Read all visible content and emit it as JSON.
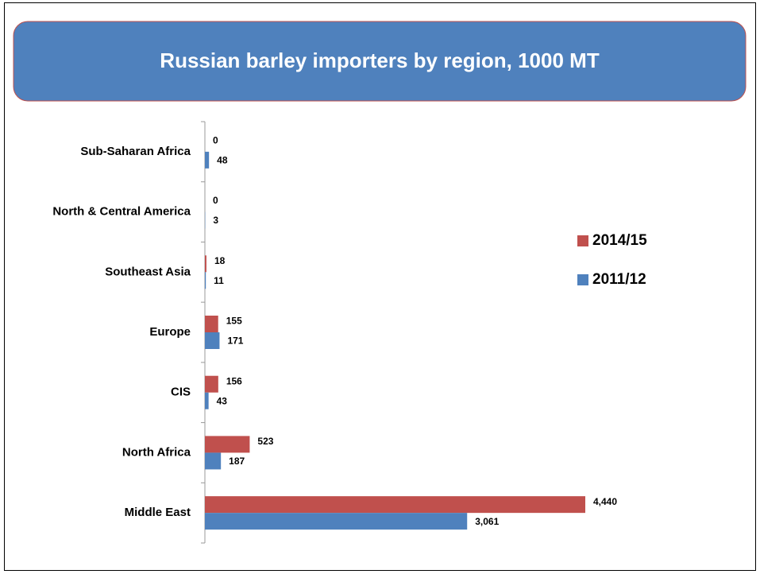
{
  "chart_data": {
    "type": "hbar",
    "title": "Russian barley importers by region, 1000 MT",
    "categories": [
      "Sub-Saharan Africa",
      "North & Central America",
      "Southeast Asia",
      "Europe",
      "CIS",
      "North Africa",
      "Middle East"
    ],
    "series": [
      {
        "name": "2014/15",
        "color": "#c0504d",
        "values": [
          0,
          0,
          18,
          155,
          156,
          523,
          4440
        ],
        "value_labels": [
          "0",
          "0",
          "18",
          "155",
          "156",
          "523",
          "4,440"
        ]
      },
      {
        "name": "2011/12",
        "color": "#4f81bd",
        "values": [
          48,
          3,
          11,
          171,
          43,
          187,
          3061
        ],
        "value_labels": [
          "48",
          "3",
          "11",
          "171",
          "43",
          "187",
          "3,061"
        ]
      }
    ],
    "legend": "right"
  }
}
